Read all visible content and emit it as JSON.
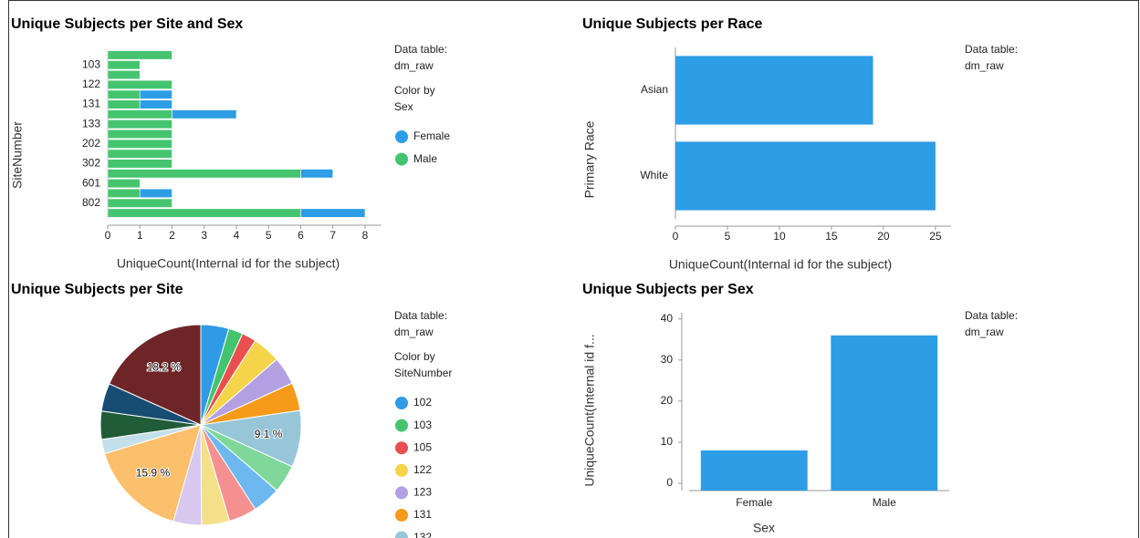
{
  "chart_data": [
    {
      "type": "bar",
      "orientation": "horizontal",
      "stacked": true,
      "title": "Unique Subjects per Site and Sex",
      "categories": [
        null,
        "103",
        null,
        "122",
        null,
        "131",
        null,
        "133",
        null,
        "202",
        null,
        "302",
        null,
        "601",
        null,
        "802",
        null
      ],
      "series": [
        {
          "name": "Female",
          "color": "#2d9de6",
          "values": [
            null,
            null,
            null,
            null,
            1,
            1,
            2,
            null,
            null,
            null,
            null,
            null,
            1,
            null,
            1,
            null,
            2
          ]
        },
        {
          "name": "Male",
          "color": "#45c46f",
          "values": [
            2,
            1,
            1,
            2,
            1,
            1,
            2,
            2,
            2,
            2,
            2,
            2,
            6,
            1,
            1,
            2,
            6
          ]
        }
      ],
      "xlim": [
        0,
        8.5
      ],
      "xticks": [
        0,
        1,
        2,
        3,
        4,
        5,
        6,
        7,
        8
      ],
      "x_label": "UniqueCount(Internal id for the subject)",
      "y_label": "SiteNumber",
      "data_table_label": "Data table:",
      "data_table": "dm_raw",
      "color_by_label": "Color by",
      "color_by": "Sex"
    },
    {
      "type": "bar",
      "orientation": "horizontal",
      "title": "Unique Subjects per Race",
      "categories": [
        "Asian",
        "White"
      ],
      "values": [
        19,
        25
      ],
      "color": "#2d9de6",
      "xlim": [
        0,
        26.5
      ],
      "xticks": [
        0,
        5,
        10,
        15,
        20,
        25
      ],
      "x_label": "UniqueCount(Internal id for the subject)",
      "y_label": "Primary Race",
      "data_table_label": "Data table:",
      "data_table": "dm_raw"
    },
    {
      "type": "pie",
      "title": "Unique Subjects per Site",
      "categories": [
        "102",
        "103",
        "105",
        "122",
        "123",
        "131",
        "132",
        null,
        null,
        null,
        null,
        null,
        null,
        null,
        null,
        null,
        null
      ],
      "values": [
        4.5,
        2.3,
        2.3,
        4.5,
        4.5,
        4.5,
        9.1,
        4.5,
        4.5,
        4.5,
        4.5,
        4.5,
        15.9,
        2.3,
        4.5,
        4.5,
        18.2
      ],
      "value_labels": [
        null,
        null,
        null,
        null,
        null,
        null,
        "9.1 %",
        null,
        null,
        null,
        null,
        null,
        "15.9 %",
        null,
        null,
        null,
        "18.2 %"
      ],
      "colors": [
        "#2f9be6",
        "#43c46d",
        "#ea4f4f",
        "#f5d44a",
        "#b3a0e3",
        "#f59a19",
        "#97c6d9",
        "#7fd89a",
        "#6cb8ef",
        "#f49090",
        "#f5e08a",
        "#d6c8ee",
        "#fcbf6b",
        "#c3e0ea",
        "#1f5c37",
        "#174d73",
        "#6e2528"
      ],
      "data_table_label": "Data table:",
      "data_table": "dm_raw",
      "color_by_label": "Color by",
      "color_by": "SiteNumber"
    },
    {
      "type": "bar",
      "orientation": "vertical",
      "title": "Unique Subjects per Sex",
      "categories": [
        "Female",
        "Male"
      ],
      "values": [
        8,
        36
      ],
      "color": "#2d9de6",
      "ylim": [
        0,
        41.5
      ],
      "yticks": [
        0,
        10,
        20,
        30,
        40
      ],
      "x_label": "Sex",
      "y_label": "UniqueCount(Internal id f...",
      "data_table_label": "Data table:",
      "data_table": "dm_raw"
    }
  ]
}
